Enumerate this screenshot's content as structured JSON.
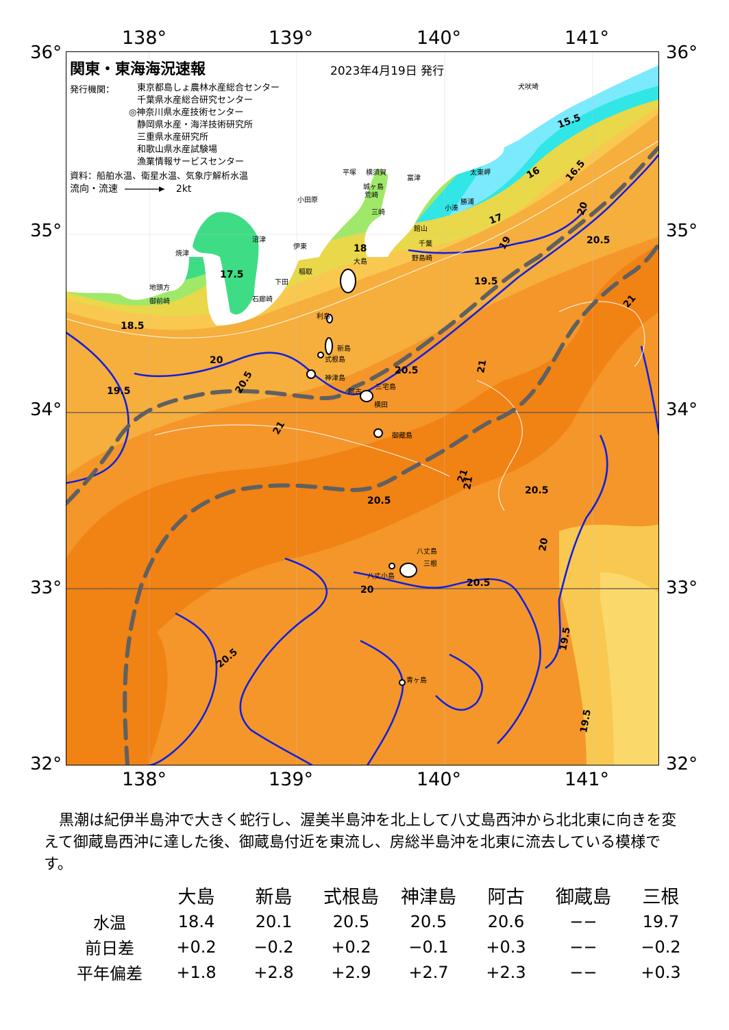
{
  "map": {
    "title": "関東・東海海況速報",
    "date": "2023年4月19日 発行",
    "issuer_label": "発行機関：",
    "issuers": [
      "東京都島しょ農林水産総合センター",
      "千葉県水産総合研究センター",
      "◎神奈川県水産技術センター",
      "静岡県水産・海洋技術研究所",
      "三重県水産研究所",
      "和歌山県水産試験場",
      "漁業情報サービスセンター"
    ],
    "source": "資料：船舶水温、衛星水温、気象庁解析水温",
    "legend_label": "流向・流速",
    "legend_speed": "2kt",
    "lon_labels": [
      "138°",
      "139°",
      "140°",
      "141°"
    ],
    "lat_labels": [
      "36°",
      "35°",
      "34°",
      "33°",
      "32°"
    ],
    "isotherms": [
      "15.5",
      "16",
      "16.5",
      "17",
      "17.5",
      "18",
      "18.5",
      "19",
      "19.5",
      "20",
      "20.5",
      "21",
      "19.5",
      "20.5",
      "21",
      "20.5",
      "20",
      "20.5",
      "21",
      "20",
      "19.5",
      "20.5",
      "21",
      "20",
      "20.5",
      "21",
      "20.5",
      "19.5"
    ],
    "places": [
      "犬吠埼",
      "太東岬",
      "勝浦",
      "小湊",
      "館山",
      "千葉",
      "野島崎",
      "富津",
      "横須賀",
      "城ヶ島",
      "平塚",
      "荒崎",
      "三崎",
      "小田原",
      "伊東",
      "沼津",
      "焼津",
      "稲取",
      "下田",
      "石廊崎",
      "地頭方",
      "御前崎",
      "大島",
      "利島",
      "新島",
      "式根島",
      "神津島",
      "阿古",
      "三宅島",
      "御蔵島",
      "八丈島",
      "三根",
      "八丈小島",
      "青ヶ島",
      "横田"
    ],
    "colors": {
      "land": "#ffffff",
      "water_15": "#7aeafc",
      "water_16": "#30e6e6",
      "water_17": "#3fdc86",
      "water_18": "#9fe86a",
      "water_19": "#e8d84a",
      "water_195": "#f8c850",
      "water_20": "#f6ae3c",
      "water_205": "#f4962a",
      "water_21": "#f18214",
      "isotherm_line": "#1020e0",
      "kuroshio_axis": "#606060"
    }
  },
  "summary": "黒潮は紀伊半島沖で大きく蛇行し、渥美半島沖を北上して八丈島西沖から北北東に向きを変えて御蔵島西沖に達した後、御蔵島付近を東流し、房総半島沖を北東に流去している模様です。",
  "table": {
    "columns": [
      "大島",
      "新島",
      "式根島",
      "神津島",
      "阿古",
      "御蔵島",
      "三根"
    ],
    "rows": [
      {
        "label": "水温",
        "values": [
          "18.4",
          "20.1",
          "20.5",
          "20.5",
          "20.6",
          "−−",
          "19.7"
        ]
      },
      {
        "label": "前日差",
        "values": [
          "+0.2",
          "−0.2",
          "+0.2",
          "−0.1",
          "+0.3",
          "−−",
          "−0.2"
        ]
      },
      {
        "label": "平年偏差",
        "values": [
          "+1.8",
          "+2.8",
          "+2.9",
          "+2.7",
          "+2.3",
          "−−",
          "+0.3"
        ]
      }
    ]
  }
}
